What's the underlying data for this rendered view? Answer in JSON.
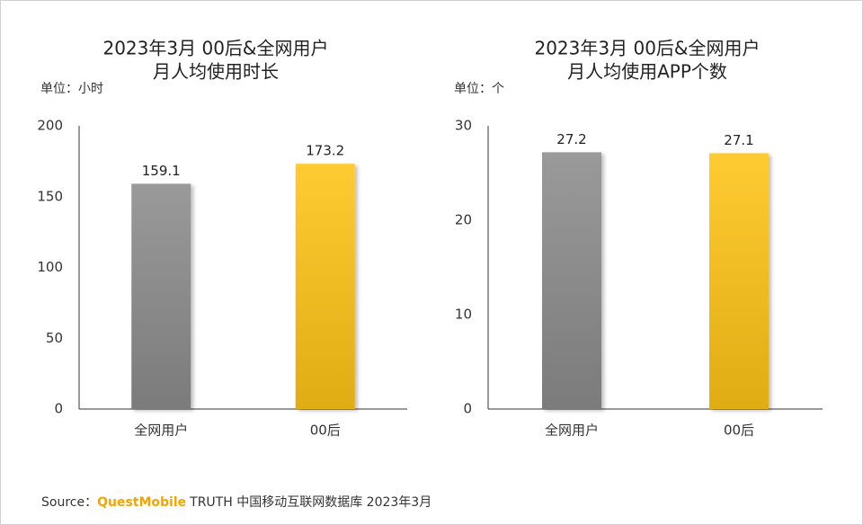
{
  "chart_data": [
    {
      "type": "bar",
      "title": [
        "2023年3月 00后&全网用户",
        "月人均使用时长"
      ],
      "unit_label": "单位：小时",
      "categories": [
        "全网用户",
        "00后"
      ],
      "values": [
        159.1,
        173.2
      ],
      "colors": [
        "#8c8c8c",
        "#ffc414"
      ],
      "ylim": [
        0,
        200
      ],
      "yticks": [
        0,
        50,
        100,
        150,
        200
      ]
    },
    {
      "type": "bar",
      "title": [
        "2023年3月 00后&全网用户",
        "月人均使用APP个数"
      ],
      "unit_label": "单位：个",
      "categories": [
        "全网用户",
        "00后"
      ],
      "values": [
        27.2,
        27.1
      ],
      "colors": [
        "#8c8c8c",
        "#ffc414"
      ],
      "ylim": [
        0,
        30
      ],
      "yticks": [
        0,
        10,
        20,
        30
      ]
    }
  ],
  "source": {
    "label": "Source：",
    "brand": "QuestMobile",
    "text": "TRUTH 中国移动互联网数据库 2023年3月"
  }
}
